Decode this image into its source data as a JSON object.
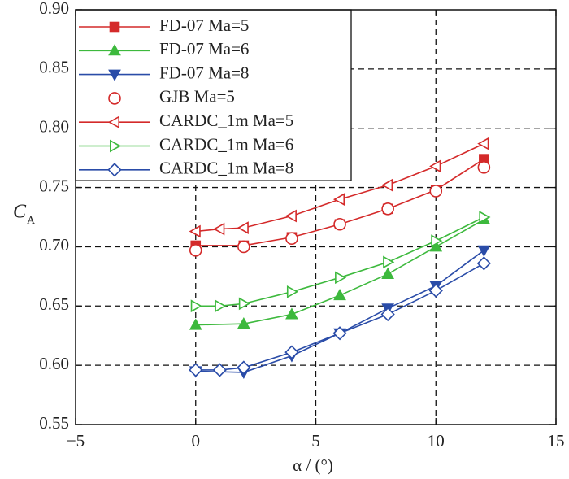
{
  "chart_data": {
    "type": "line",
    "xlabel": "α / (°)",
    "ylabel": "C",
    "ylabel_sub": "A",
    "xlim": [
      -5,
      15
    ],
    "ylim": [
      0.55,
      0.9
    ],
    "xticks": [
      {
        "value": -5,
        "label": "−5"
      },
      0,
      5,
      10,
      15
    ],
    "yticks": [
      0.55,
      {
        "value": 0.6,
        "label": "0.60"
      },
      0.65,
      {
        "value": 0.7,
        "label": "0.70"
      },
      0.75,
      {
        "value": 0.8,
        "label": "0.80"
      },
      0.85,
      {
        "value": 0.9,
        "label": "0.90"
      }
    ],
    "grid": true,
    "legend": "upper left",
    "series": [
      {
        "name": "FD-07 Ma=5",
        "color": "#d42a2a",
        "marker": "square",
        "filled": true,
        "line": true,
        "x": [
          0,
          2,
          4,
          6,
          8,
          10,
          12
        ],
        "values": [
          0.701,
          0.701,
          0.708,
          0.719,
          0.732,
          0.748,
          0.774
        ]
      },
      {
        "name": "FD-07 Ma=6",
        "color": "#3db93d",
        "marker": "triangle-up",
        "filled": true,
        "line": true,
        "x": [
          0,
          2,
          4,
          6,
          8,
          10,
          12
        ],
        "values": [
          0.634,
          0.635,
          0.643,
          0.659,
          0.677,
          0.7,
          0.723
        ]
      },
      {
        "name": "FD-07 Ma=8",
        "color": "#2a4ca8",
        "marker": "triangle-down",
        "filled": true,
        "line": true,
        "x": [
          0,
          2,
          4,
          6,
          8,
          10,
          12
        ],
        "values": [
          0.595,
          0.594,
          0.608,
          0.627,
          0.648,
          0.667,
          0.697
        ]
      },
      {
        "name": "GJB Ma=5",
        "color": "#d42a2a",
        "marker": "circle",
        "filled": false,
        "line": false,
        "x": [
          0,
          2,
          4,
          6,
          8,
          10,
          12
        ],
        "values": [
          0.697,
          0.7,
          0.707,
          0.719,
          0.732,
          0.747,
          0.767
        ]
      },
      {
        "name": "CARDC_1m Ma=5",
        "color": "#d42a2a",
        "marker": "triangle-left",
        "filled": false,
        "line": true,
        "x": [
          0,
          1,
          2,
          4,
          6,
          8,
          10,
          12
        ],
        "values": [
          0.713,
          0.715,
          0.716,
          0.726,
          0.74,
          0.752,
          0.768,
          0.787
        ]
      },
      {
        "name": "CARDC_1m Ma=6",
        "color": "#3db93d",
        "marker": "triangle-right",
        "filled": false,
        "line": true,
        "x": [
          0,
          1,
          2,
          4,
          6,
          8,
          10,
          12
        ],
        "values": [
          0.65,
          0.65,
          0.652,
          0.662,
          0.674,
          0.687,
          0.705,
          0.725
        ]
      },
      {
        "name": "CARDC_1m Ma=8",
        "color": "#2a4ca8",
        "marker": "diamond",
        "filled": false,
        "line": true,
        "x": [
          0,
          1,
          2,
          4,
          6,
          8,
          10,
          12
        ],
        "values": [
          0.596,
          0.596,
          0.598,
          0.611,
          0.627,
          0.643,
          0.663,
          0.686
        ]
      }
    ]
  }
}
